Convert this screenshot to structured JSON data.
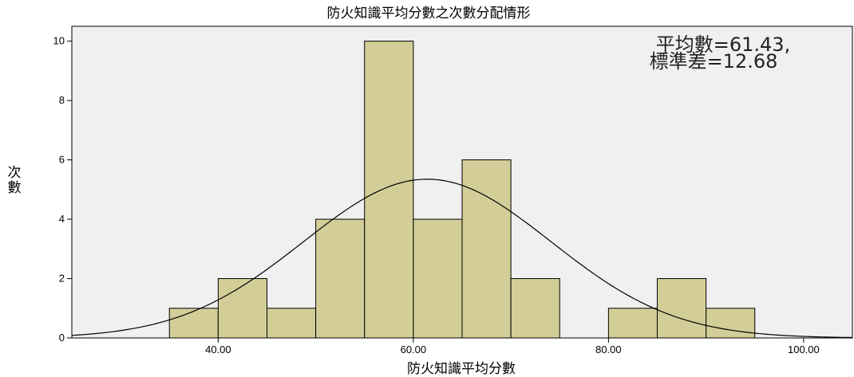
{
  "chart_data": {
    "type": "bar",
    "title": "防火知識平均分數之次數分配情形",
    "xlabel": "防火知識平均分數",
    "ylabel": "次數",
    "xlim": [
      25,
      105
    ],
    "ylim": [
      0,
      10.5
    ],
    "x_ticks": [
      "40.00",
      "60.00",
      "80.00",
      "100.00"
    ],
    "x_tick_values": [
      40,
      60,
      80,
      100
    ],
    "y_ticks": [
      "0",
      "2",
      "4",
      "6",
      "8",
      "10"
    ],
    "y_tick_values": [
      0,
      2,
      4,
      6,
      8,
      10
    ],
    "bins": [
      {
        "from": 35,
        "to": 40,
        "count": 1
      },
      {
        "from": 40,
        "to": 45,
        "count": 2
      },
      {
        "from": 45,
        "to": 50,
        "count": 1
      },
      {
        "from": 50,
        "to": 55,
        "count": 4
      },
      {
        "from": 55,
        "to": 60,
        "count": 10
      },
      {
        "from": 60,
        "to": 65,
        "count": 4
      },
      {
        "from": 65,
        "to": 70,
        "count": 6
      },
      {
        "from": 70,
        "to": 75,
        "count": 2
      },
      {
        "from": 75,
        "to": 80,
        "count": 0
      },
      {
        "from": 80,
        "to": 85,
        "count": 1
      },
      {
        "from": 85,
        "to": 90,
        "count": 2
      },
      {
        "from": 90,
        "to": 95,
        "count": 1
      }
    ],
    "normal_curve": {
      "mean": 61.43,
      "sd": 12.68,
      "n": 34,
      "bin_width": 5
    },
    "stats_lines": [
      "平均數=61.43,",
      "標準差=12.68"
    ],
    "legend_position": "top-right",
    "grid": false,
    "colors": {
      "bar_fill": "#d3ce97",
      "bar_stroke": "#000000",
      "plot_bg": "#f0f0f0",
      "curve": "#000000"
    }
  }
}
